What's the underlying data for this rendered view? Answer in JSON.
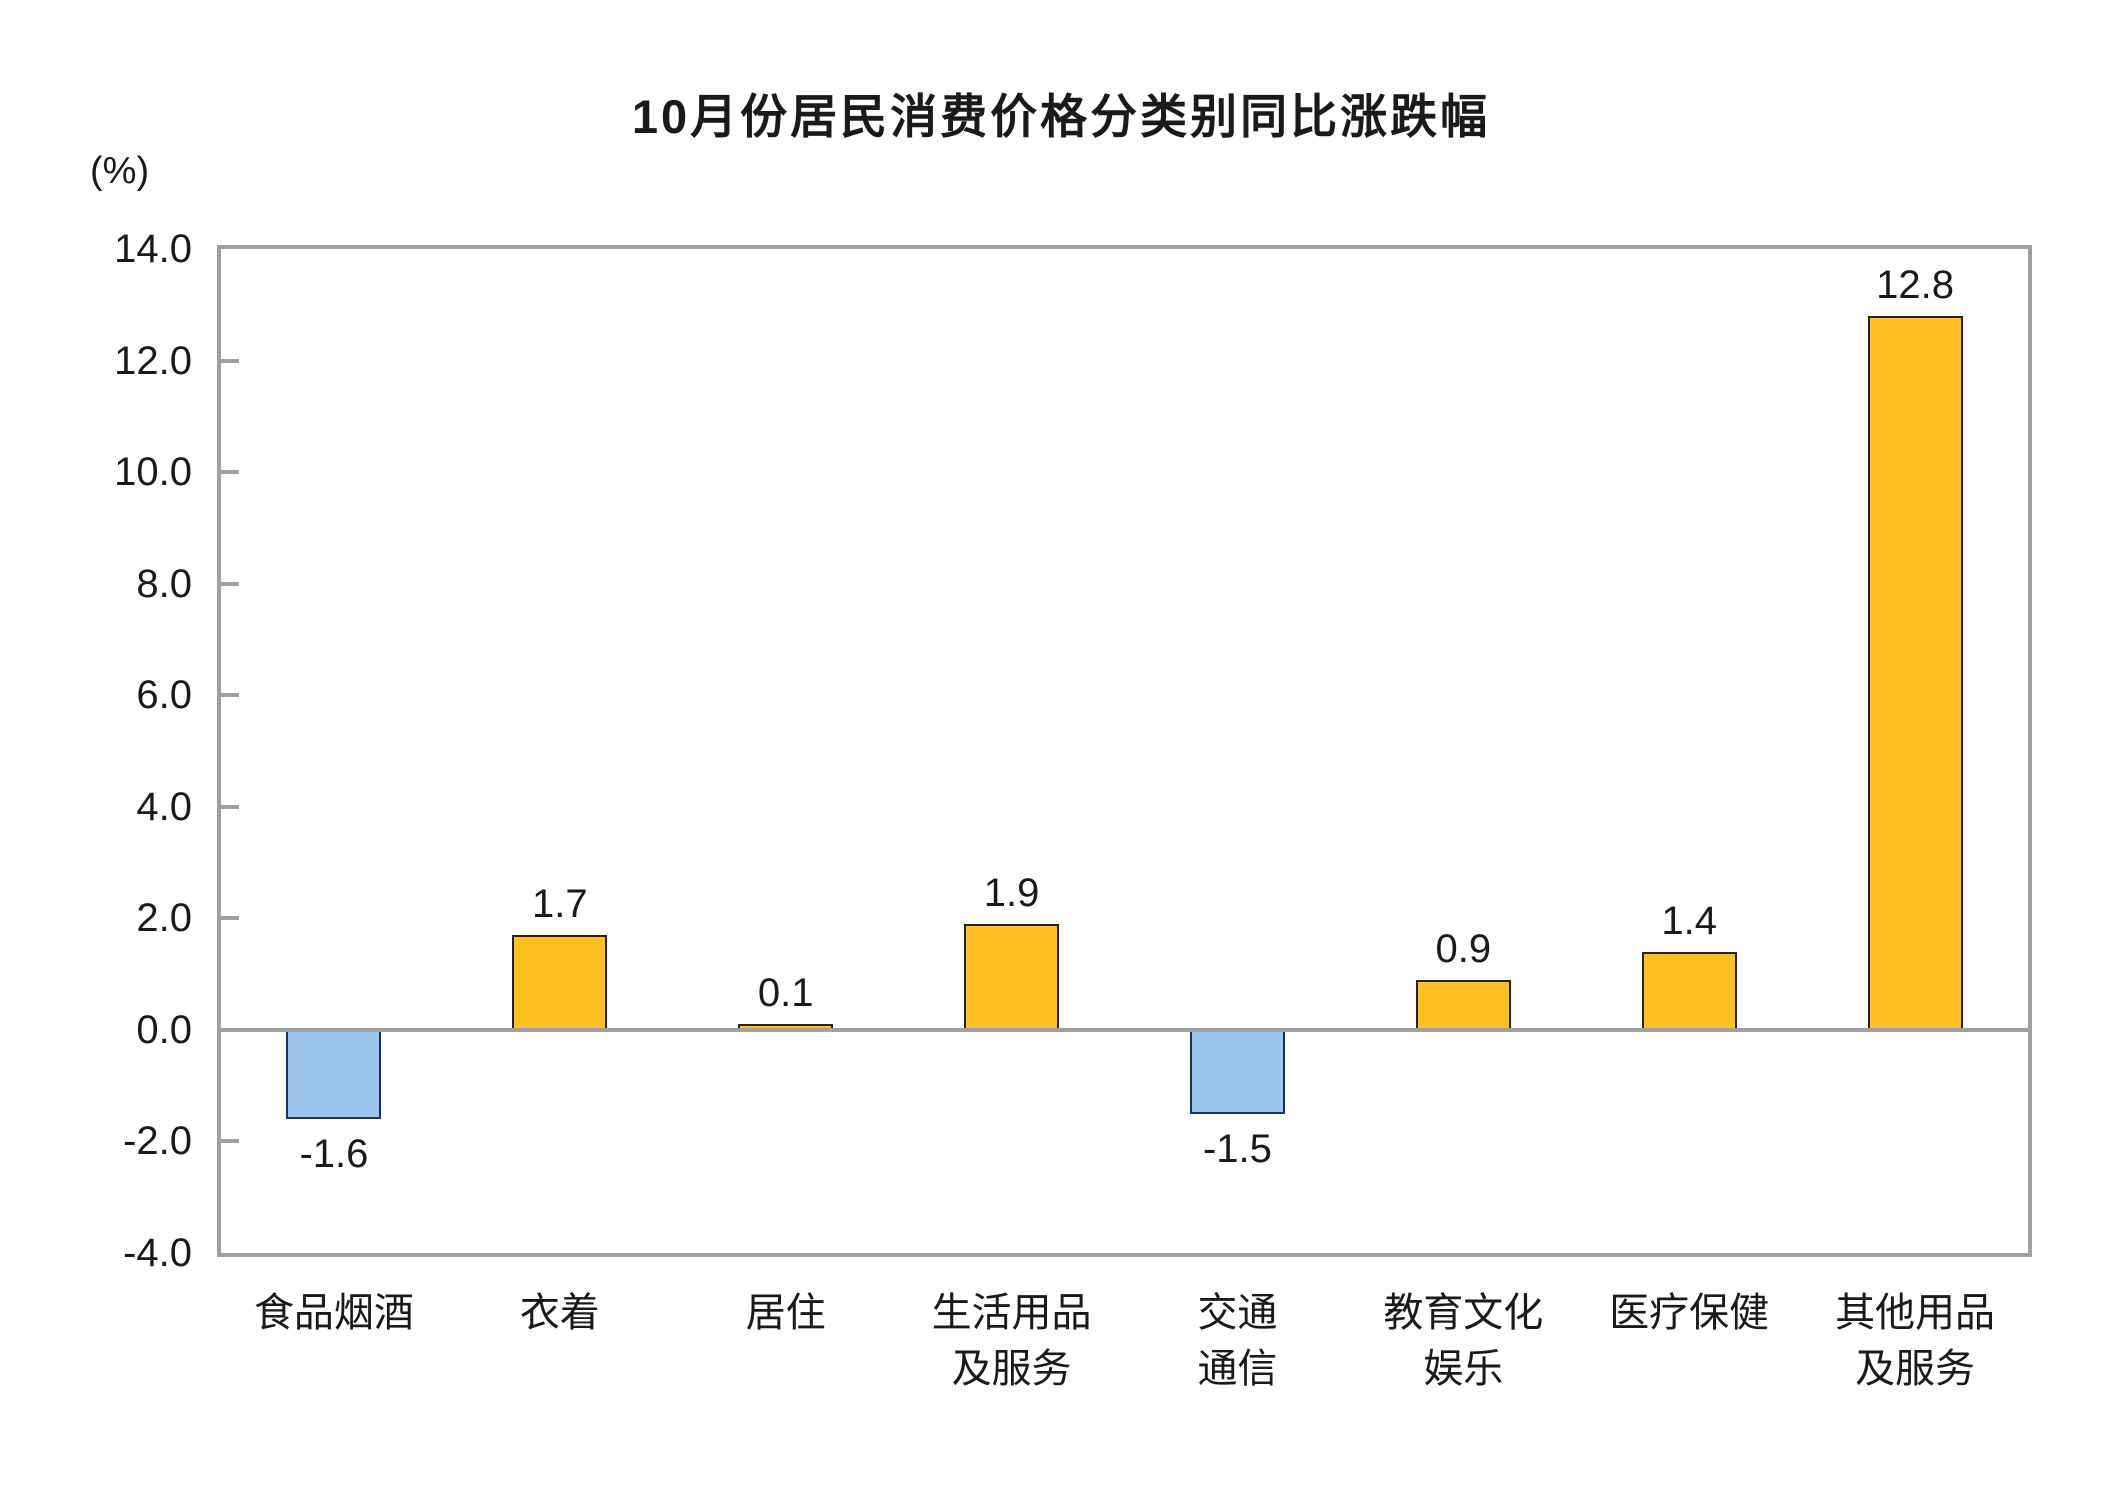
{
  "chart_data": {
    "type": "bar",
    "title": "10月份居民消费价格分类别同比涨跌幅",
    "ylabel": "(%)",
    "xlabel": "",
    "categories": [
      "食品烟酒",
      "衣着",
      "居住",
      "生活用品\n及服务",
      "交通\n通信",
      "教育文化\n娱乐",
      "医疗保健",
      "其他用品\n及服务"
    ],
    "values": [
      -1.6,
      1.7,
      0.1,
      1.9,
      -1.5,
      0.9,
      1.4,
      12.8
    ],
    "value_labels": [
      "-1.6",
      "1.7",
      "0.1",
      "1.9",
      "-1.5",
      "0.9",
      "1.4",
      "12.8"
    ],
    "ylim": [
      -4.0,
      14.0
    ],
    "ytick_step": 2.0,
    "ytick_labels": [
      "14.0",
      "12.0",
      "10.0",
      "8.0",
      "6.0",
      "4.0",
      "2.0",
      "0.0",
      "-2.0",
      "-4.0"
    ],
    "grid": false,
    "legend": false,
    "colors": {
      "bar_positive_fill": "#FFC125",
      "bar_positive_border": "#2B2111",
      "bar_negative_fill": "#9DC5EB",
      "bar_negative_border": "#17375E",
      "axis": "#A0A0A0",
      "text": "#1A1A1A",
      "background": "#FFFFFF"
    }
  }
}
